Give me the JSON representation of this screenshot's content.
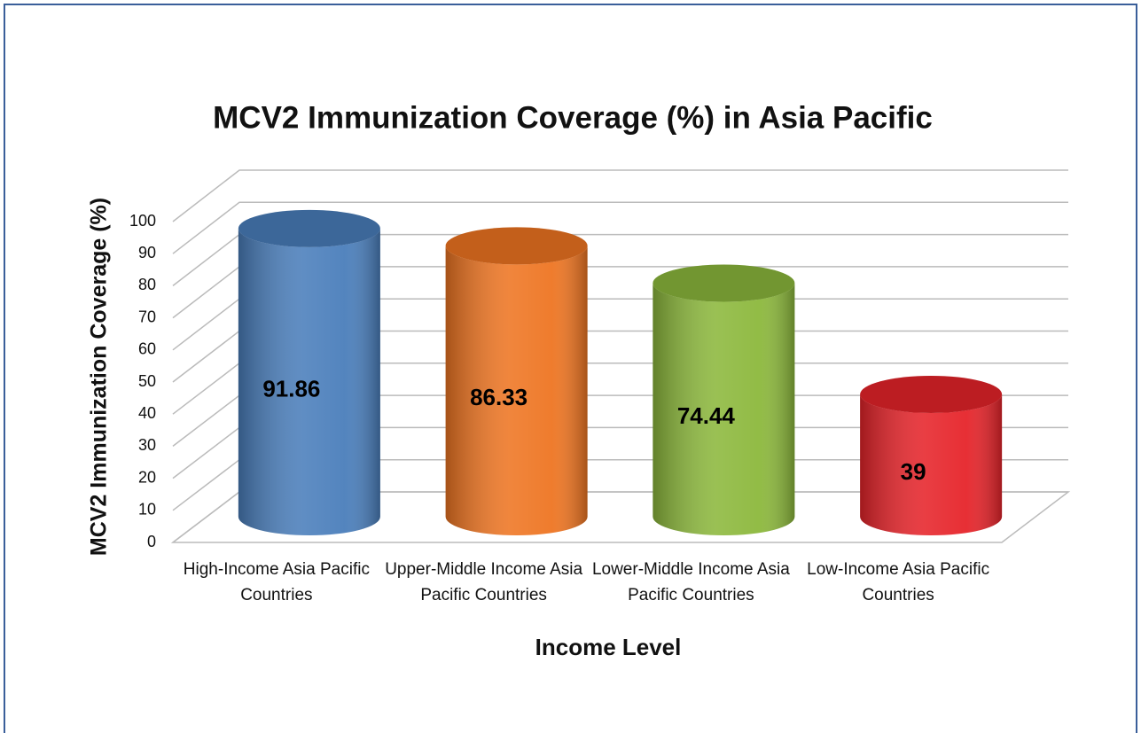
{
  "chart_data": {
    "type": "bar3d",
    "title": "MCV2 Immunization Coverage (%) in Asia Pacific",
    "x_label": "Income Level",
    "y_label": "MCV2 Immunization Coverage (%)",
    "categories": [
      "High-Income Asia Pacific Countries",
      "Upper-Middle Income Asia Pacific Countries",
      "Lower-Middle Income Asia Pacific Countries",
      "Low-Income Asia Pacific Countries"
    ],
    "values": [
      91.86,
      86.33,
      74.44,
      39
    ],
    "colors": [
      "#4a7ebb",
      "#ee7522",
      "#8cb83c",
      "#e6242a"
    ],
    "ylim": [
      0,
      100
    ],
    "yticks": [
      0,
      10,
      20,
      30,
      40,
      50,
      60,
      70,
      80,
      90,
      100
    ],
    "grid": true
  }
}
